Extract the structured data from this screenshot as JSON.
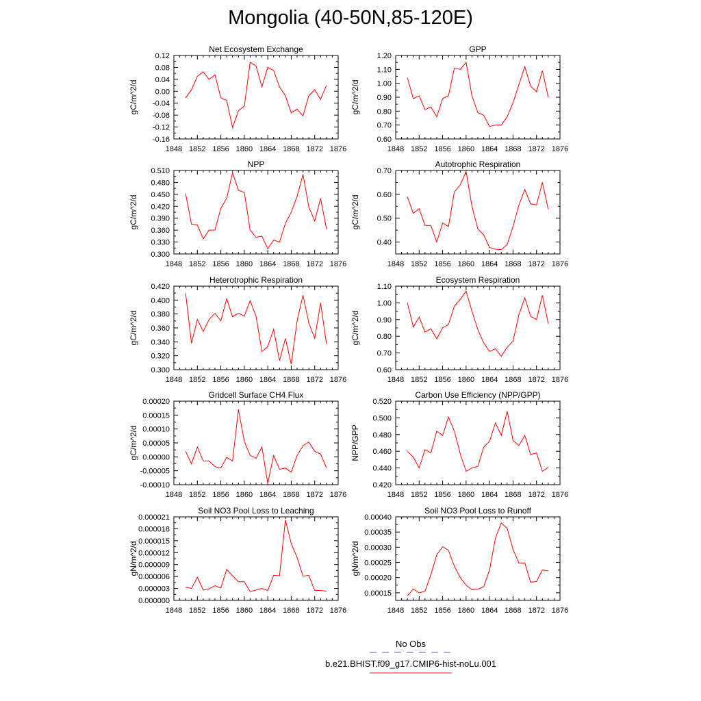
{
  "page": {
    "title": "Mongolia (40-50N,85-120E)",
    "legend": [
      {
        "label": "No Obs",
        "color": "#5b5bd6",
        "style": "dashed"
      },
      {
        "label": "b.e21.BHIST.f09_g17.CMIP6-hist-noLu.001",
        "color": "#e41a1c",
        "style": "solid"
      }
    ]
  },
  "chart_data": [
    {
      "type": "line",
      "title": "Net Ecosystem Exchange",
      "ylabel": "gC/m^2/d",
      "xlim": [
        1848,
        1876
      ],
      "xticks": [
        "1848",
        "1852",
        "1856",
        "1860",
        "1864",
        "1868",
        "1872",
        "1876"
      ],
      "ylim": [
        -0.16,
        0.12
      ],
      "yticks": [
        "-0.16",
        "-0.12",
        "-0.08",
        "-0.04",
        "0.00",
        "0.04",
        "0.08",
        "0.12"
      ],
      "color": "#ff0000",
      "x": [
        1850,
        1851,
        1852,
        1853,
        1854,
        1855,
        1856,
        1857,
        1858,
        1859,
        1860,
        1861,
        1862,
        1863,
        1864,
        1865,
        1866,
        1867,
        1868,
        1869,
        1870,
        1871,
        1872,
        1873,
        1874
      ],
      "y": [
        -0.022,
        0.005,
        0.05,
        0.065,
        0.04,
        0.055,
        -0.022,
        -0.03,
        -0.122,
        -0.065,
        -0.05,
        0.097,
        0.085,
        0.015,
        0.08,
        0.07,
        0.015,
        -0.015,
        -0.072,
        -0.06,
        -0.083,
        -0.015,
        0.005,
        -0.027,
        0.02
      ]
    },
    {
      "type": "line",
      "title": "GPP",
      "ylabel": "gC/m^2/d",
      "xlim": [
        1848,
        1876
      ],
      "xticks": [
        "1848",
        "1852",
        "1856",
        "1860",
        "1864",
        "1868",
        "1872",
        "1876"
      ],
      "ylim": [
        0.6,
        1.2
      ],
      "yticks": [
        "0.60",
        "0.70",
        "0.80",
        "0.90",
        "1.00",
        "1.10",
        "1.20"
      ],
      "color": "#ff0000",
      "x": [
        1850,
        1851,
        1852,
        1853,
        1854,
        1855,
        1856,
        1857,
        1858,
        1859,
        1860,
        1861,
        1862,
        1863,
        1864,
        1865,
        1866,
        1867,
        1868,
        1869,
        1870,
        1871,
        1872,
        1873,
        1874
      ],
      "y": [
        1.04,
        0.89,
        0.91,
        0.81,
        0.83,
        0.76,
        0.89,
        0.91,
        1.11,
        1.1,
        1.15,
        0.91,
        0.79,
        0.77,
        0.69,
        0.7,
        0.7,
        0.76,
        0.86,
        0.99,
        1.12,
        0.98,
        0.94,
        1.09,
        0.9
      ]
    },
    {
      "type": "line",
      "title": "NPP",
      "ylabel": "gC/m^2/d",
      "xlim": [
        1848,
        1876
      ],
      "xticks": [
        "1848",
        "1852",
        "1856",
        "1860",
        "1864",
        "1868",
        "1872",
        "1876"
      ],
      "ylim": [
        0.3,
        0.51
      ],
      "yticks": [
        "0.300",
        "0.330",
        "0.360",
        "0.390",
        "0.420",
        "0.450",
        "0.480",
        "0.510"
      ],
      "color": "#ff0000",
      "x": [
        1850,
        1851,
        1852,
        1853,
        1854,
        1855,
        1856,
        1857,
        1858,
        1859,
        1860,
        1861,
        1862,
        1863,
        1864,
        1865,
        1866,
        1867,
        1868,
        1869,
        1870,
        1871,
        1872,
        1873,
        1874
      ],
      "y": [
        0.452,
        0.375,
        0.373,
        0.338,
        0.36,
        0.36,
        0.415,
        0.44,
        0.504,
        0.46,
        0.455,
        0.36,
        0.342,
        0.345,
        0.313,
        0.335,
        0.33,
        0.377,
        0.405,
        0.445,
        0.5,
        0.418,
        0.383,
        0.44,
        0.363
      ]
    },
    {
      "type": "line",
      "title": "Autotrophic Respiration",
      "ylabel": "gC/m^2/d",
      "xlim": [
        1848,
        1876
      ],
      "xticks": [
        "1848",
        "1852",
        "1856",
        "1860",
        "1864",
        "1868",
        "1872",
        "1876"
      ],
      "ylim": [
        0.35,
        0.7
      ],
      "yticks": [
        "0.40",
        "0.50",
        "0.60",
        "0.70"
      ],
      "color": "#ff0000",
      "x": [
        1850,
        1851,
        1852,
        1853,
        1854,
        1855,
        1856,
        1857,
        1858,
        1859,
        1860,
        1861,
        1862,
        1863,
        1864,
        1865,
        1866,
        1867,
        1868,
        1869,
        1870,
        1871,
        1872,
        1873,
        1874
      ],
      "y": [
        0.59,
        0.52,
        0.54,
        0.47,
        0.47,
        0.4,
        0.48,
        0.465,
        0.61,
        0.64,
        0.695,
        0.55,
        0.455,
        0.43,
        0.377,
        0.37,
        0.368,
        0.39,
        0.465,
        0.555,
        0.62,
        0.56,
        0.555,
        0.65,
        0.537
      ]
    },
    {
      "type": "line",
      "title": "Heterotrophic Respiration",
      "ylabel": "gC/m^2/d",
      "xlim": [
        1848,
        1876
      ],
      "xticks": [
        "1848",
        "1852",
        "1856",
        "1860",
        "1864",
        "1868",
        "1872",
        "1876"
      ],
      "ylim": [
        0.3,
        0.42
      ],
      "yticks": [
        "0.300",
        "0.320",
        "0.340",
        "0.360",
        "0.380",
        "0.400",
        "0.420"
      ],
      "color": "#ff0000",
      "x": [
        1850,
        1851,
        1852,
        1853,
        1854,
        1855,
        1856,
        1857,
        1858,
        1859,
        1860,
        1861,
        1862,
        1863,
        1864,
        1865,
        1866,
        1867,
        1868,
        1869,
        1870,
        1871,
        1872,
        1873,
        1874
      ],
      "y": [
        0.41,
        0.338,
        0.372,
        0.355,
        0.372,
        0.381,
        0.37,
        0.402,
        0.376,
        0.381,
        0.377,
        0.399,
        0.377,
        0.326,
        0.333,
        0.358,
        0.313,
        0.345,
        0.308,
        0.37,
        0.407,
        0.367,
        0.345,
        0.396,
        0.337
      ]
    },
    {
      "type": "line",
      "title": "Ecosystem Respiration",
      "ylabel": "gC/m^2/d",
      "xlim": [
        1848,
        1876
      ],
      "xticks": [
        "1848",
        "1852",
        "1856",
        "1860",
        "1864",
        "1868",
        "1872",
        "1876"
      ],
      "ylim": [
        0.6,
        1.1
      ],
      "yticks": [
        "0.60",
        "0.70",
        "0.80",
        "0.90",
        "1.00",
        "1.10"
      ],
      "color": "#ff0000",
      "x": [
        1850,
        1851,
        1852,
        1853,
        1854,
        1855,
        1856,
        1857,
        1858,
        1859,
        1860,
        1861,
        1862,
        1863,
        1864,
        1865,
        1866,
        1867,
        1868,
        1869,
        1870,
        1871,
        1872,
        1873,
        1874
      ],
      "y": [
        1.0,
        0.855,
        0.915,
        0.825,
        0.845,
        0.785,
        0.85,
        0.87,
        0.98,
        1.02,
        1.07,
        0.95,
        0.84,
        0.76,
        0.71,
        0.725,
        0.68,
        0.735,
        0.77,
        0.93,
        1.03,
        0.92,
        0.9,
        1.045,
        0.875
      ]
    },
    {
      "type": "line",
      "title": "Gridcell Surface CH4 Flux",
      "ylabel": "gC/m^2/d",
      "xlim": [
        1848,
        1876
      ],
      "xticks": [
        "1848",
        "1852",
        "1856",
        "1860",
        "1864",
        "1868",
        "1872",
        "1876"
      ],
      "ylim": [
        -0.0001,
        0.0002
      ],
      "yticks": [
        "-0.00010",
        "-0.00005",
        "0.00000",
        "0.00005",
        "0.00010",
        "0.00015",
        "0.00020"
      ],
      "color": "#ff0000",
      "x": [
        1850,
        1851,
        1852,
        1853,
        1854,
        1855,
        1856,
        1857,
        1858,
        1859,
        1860,
        1861,
        1862,
        1863,
        1864,
        1865,
        1866,
        1867,
        1868,
        1869,
        1870,
        1871,
        1872,
        1873,
        1874
      ],
      "y": [
        2e-05,
        -2.5e-05,
        3.5e-05,
        -1.5e-05,
        -1.5e-05,
        -3.5e-05,
        -4e-05,
        -2e-06,
        -1.5e-05,
        0.00017,
        5.5e-05,
        5e-06,
        -5e-06,
        3.5e-05,
        -9.5e-05,
        5e-06,
        -4.5e-05,
        -4e-05,
        -5.5e-05,
        5e-06,
        4e-05,
        5.3e-05,
        2e-05,
        1e-05,
        -4e-05
      ]
    },
    {
      "type": "line",
      "title": "Carbon Use Efficiency (NPP/GPP)",
      "ylabel": "NPP/GPP",
      "xlim": [
        1848,
        1876
      ],
      "xticks": [
        "1848",
        "1852",
        "1856",
        "1860",
        "1864",
        "1868",
        "1872",
        "1876"
      ],
      "ylim": [
        0.42,
        0.52
      ],
      "yticks": [
        "0.420",
        "0.440",
        "0.460",
        "0.480",
        "0.500",
        "0.520"
      ],
      "color": "#ff0000",
      "x": [
        1850,
        1851,
        1852,
        1853,
        1854,
        1855,
        1856,
        1857,
        1858,
        1859,
        1860,
        1861,
        1862,
        1863,
        1864,
        1865,
        1866,
        1867,
        1868,
        1869,
        1870,
        1871,
        1872,
        1873,
        1874
      ],
      "y": [
        0.46,
        0.453,
        0.44,
        0.462,
        0.458,
        0.484,
        0.479,
        0.501,
        0.484,
        0.457,
        0.436,
        0.44,
        0.442,
        0.465,
        0.472,
        0.494,
        0.479,
        0.508,
        0.473,
        0.467,
        0.479,
        0.456,
        0.458,
        0.436,
        0.441
      ]
    },
    {
      "type": "line",
      "title": "Soil NO3 Pool Loss to Leaching",
      "ylabel": "gN/m^2/d",
      "xlim": [
        1848,
        1876
      ],
      "xticks": [
        "1848",
        "1852",
        "1856",
        "1860",
        "1864",
        "1868",
        "1872",
        "1876"
      ],
      "ylim": [
        0,
        2.1e-05
      ],
      "yticks": [
        "0.000000",
        "0.000003",
        "0.000006",
        "0.000009",
        "0.000012",
        "0.000015",
        "0.000018",
        "0.000021"
      ],
      "color": "#ff0000",
      "x": [
        1850,
        1851,
        1852,
        1853,
        1854,
        1855,
        1856,
        1857,
        1858,
        1859,
        1860,
        1861,
        1862,
        1863,
        1864,
        1865,
        1866,
        1867,
        1868,
        1869,
        1870,
        1871,
        1872,
        1873,
        1874
      ],
      "y": [
        3.3e-06,
        3e-06,
        5.8e-06,
        2.6e-06,
        2.9e-06,
        3.7e-06,
        3.1e-06,
        7.8e-06,
        6.2e-06,
        4.7e-06,
        4.7e-06,
        2.2e-06,
        2.6e-06,
        3e-06,
        2.5e-06,
        6.3e-06,
        6.2e-06,
        2.02e-05,
        1.43e-05,
        1.08e-05,
        6.1e-06,
        6.3e-06,
        2.5e-06,
        2.5e-06,
        2.3e-06
      ]
    },
    {
      "type": "line",
      "title": "Soil NO3 Pool Loss to Runoff",
      "ylabel": "gN/m^2/d",
      "xlim": [
        1848,
        1876
      ],
      "xticks": [
        "1848",
        "1852",
        "1856",
        "1860",
        "1864",
        "1868",
        "1872",
        "1876"
      ],
      "ylim": [
        0.000125,
        0.0004
      ],
      "yticks": [
        "0.00015",
        "0.00020",
        "0.00025",
        "0.00030",
        "0.00035",
        "0.00040"
      ],
      "color": "#ff0000",
      "x": [
        1850,
        1851,
        1852,
        1853,
        1854,
        1855,
        1856,
        1857,
        1858,
        1859,
        1860,
        1861,
        1862,
        1863,
        1864,
        1865,
        1866,
        1867,
        1868,
        1869,
        1870,
        1871,
        1872,
        1873,
        1874
      ],
      "y": [
        0.00014,
        0.000162,
        0.00015,
        0.000155,
        0.00021,
        0.000275,
        0.000302,
        0.00029,
        0.000238,
        0.0002,
        0.000175,
        0.00016,
        0.000162,
        0.00017,
        0.000225,
        0.00033,
        0.00038,
        0.000362,
        0.000293,
        0.000248,
        0.000248,
        0.000185,
        0.000187,
        0.000225,
        0.000222
      ]
    }
  ]
}
